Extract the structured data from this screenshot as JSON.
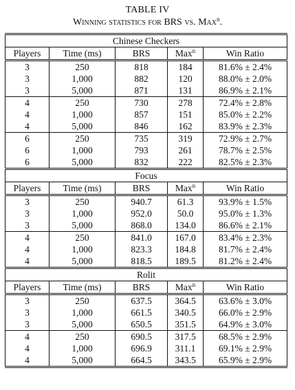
{
  "caption": {
    "table_number": "TABLE IV",
    "title_prefix": "Winning statistics for",
    "title_brs": "BRS",
    "title_vs": "vs.",
    "title_max": "Max",
    "title_sup": "n",
    "title_end": "."
  },
  "columns": {
    "players": "Players",
    "time": "Time (ms)",
    "brs": "BRS",
    "max": "Max",
    "max_sup": "n",
    "win_ratio": "Win Ratio"
  },
  "games": [
    {
      "name": "Chinese Checkers",
      "rows": [
        [
          "3",
          "250",
          "818",
          "184",
          "81.6% ± 2.4%"
        ],
        [
          "3",
          "1,000",
          "882",
          "120",
          "88.0% ± 2.0%"
        ],
        [
          "3",
          "5,000",
          "871",
          "131",
          "86.9% ± 2.1%"
        ],
        [
          "4",
          "250",
          "730",
          "278",
          "72.4% ± 2.8%"
        ],
        [
          "4",
          "1,000",
          "857",
          "151",
          "85.0% ± 2.2%"
        ],
        [
          "4",
          "5,000",
          "846",
          "162",
          "83.9% ± 2.3%"
        ],
        [
          "6",
          "250",
          "735",
          "319",
          "72.9% ± 2.7%"
        ],
        [
          "6",
          "1,000",
          "793",
          "261",
          "78.7% ± 2.5%"
        ],
        [
          "6",
          "5,000",
          "832",
          "222",
          "82.5% ± 2.3%"
        ]
      ]
    },
    {
      "name": "Focus",
      "rows": [
        [
          "3",
          "250",
          "940.7",
          "61.3",
          "93.9% ± 1.5%"
        ],
        [
          "3",
          "1,000",
          "952.0",
          "50.0",
          "95.0% ± 1.3%"
        ],
        [
          "3",
          "5,000",
          "868.0",
          "134.0",
          "86.6% ± 2.1%"
        ],
        [
          "4",
          "250",
          "841.0",
          "167.0",
          "83.4% ± 2.3%"
        ],
        [
          "4",
          "1,000",
          "823.3",
          "184.8",
          "81.7% ± 2.4%"
        ],
        [
          "4",
          "5,000",
          "818.5",
          "189.5",
          "81.2% ± 2.4%"
        ]
      ]
    },
    {
      "name": "Rolit",
      "rows": [
        [
          "3",
          "250",
          "637.5",
          "364.5",
          "63.6% ± 3.0%"
        ],
        [
          "3",
          "1,000",
          "661.5",
          "340.5",
          "66.0% ± 2.9%"
        ],
        [
          "3",
          "5,000",
          "650.5",
          "351.5",
          "64.9% ± 3.0%"
        ],
        [
          "4",
          "250",
          "690.5",
          "317.5",
          "68.5% ± 2.9%"
        ],
        [
          "4",
          "1,000",
          "696.9",
          "311.1",
          "69.1% ± 2.9%"
        ],
        [
          "4",
          "5,000",
          "664.5",
          "343.5",
          "65.9% ± 2.9%"
        ]
      ]
    }
  ]
}
